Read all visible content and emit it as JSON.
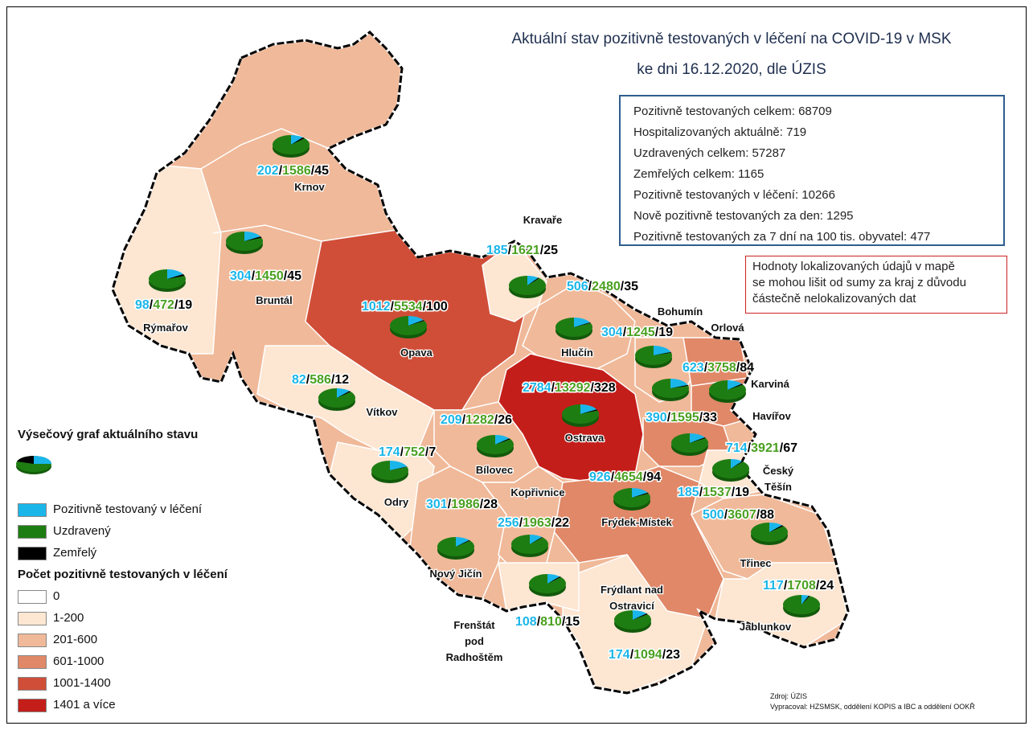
{
  "title_line1": "Aktuální stav pozitivně testovaných v léčení na COVID-19 v MSK",
  "title_line2": "ke dni 16.12.2020, dle ÚZIS",
  "stats": [
    "Pozitivně testovaných celkem: 68709",
    "Hospitalizovaných aktuálně: 719",
    "Uzdravených celkem: 57287",
    "Zemřelých celkem: 1165",
    "Pozitivně testovaných v léčení: 10266",
    "Nově pozitivně testovaných za den: 1295",
    "Pozitivně testovaných za 7 dní na 100 tis. obyvatel: 477"
  ],
  "note": [
    "Hodnoty lokalizovaných údajů v mapě",
    "se mohou lišit od sumy za kraj z důvodu",
    "částečně nelokalizovaných dat"
  ],
  "legend": {
    "pie_title": "Výsečový graf aktuálního stavu",
    "items": [
      {
        "label": "Pozitivně testovaný v léčení",
        "color": "#1ab6ea"
      },
      {
        "label": "Uzdravený",
        "color": "#1e7d12"
      },
      {
        "label": "Zemřelý",
        "color": "#000000"
      }
    ],
    "count_title": "Počet pozitivně testovaných v léčení",
    "classes": [
      {
        "label": "0",
        "color": "#ffffff"
      },
      {
        "label": "1-200",
        "color": "#fde6d2"
      },
      {
        "label": "201-600",
        "color": "#f0b999"
      },
      {
        "label": "601-1000",
        "color": "#e08868"
      },
      {
        "label": "1001-1400",
        "color": "#d04e38"
      },
      {
        "label": "1401 a více",
        "color": "#c41e1a"
      }
    ]
  },
  "source": [
    "Zdroj: ÚZIS",
    "Vypracoval: HZSMSK, oddělení KOPIS a IBC a oddělení OOKŘ"
  ],
  "regions": [
    {
      "name": "Krnov",
      "active": 202,
      "recovered": 1586,
      "deaths": 45
    },
    {
      "name": "Rýmařov",
      "active": 98,
      "recovered": 472,
      "deaths": 19
    },
    {
      "name": "Bruntál",
      "active": 304,
      "recovered": 1450,
      "deaths": 45
    },
    {
      "name": "Kravaře",
      "active": 185,
      "recovered": 1621,
      "deaths": 25
    },
    {
      "name": "Opava",
      "active": 1012,
      "recovered": 5534,
      "deaths": 100
    },
    {
      "name": "Hlučín",
      "active": 506,
      "recovered": 2480,
      "deaths": 35
    },
    {
      "name": "Bohumín",
      "active": 304,
      "recovered": 1245,
      "deaths": 19
    },
    {
      "name": "Orlová",
      "active": 623,
      "recovered": 3758,
      "deaths": 84
    },
    {
      "name": "Karviná",
      "active": 390,
      "recovered": 1595,
      "deaths": 33
    },
    {
      "name": "Havířov",
      "active": 714,
      "recovered": 3921,
      "deaths": 67
    },
    {
      "name": "Ostrava",
      "active": 2784,
      "recovered": 13292,
      "deaths": 328
    },
    {
      "name": "Vítkov",
      "active": 82,
      "recovered": 586,
      "deaths": 12
    },
    {
      "name": "Bílovec",
      "active": 209,
      "recovered": 1282,
      "deaths": 26
    },
    {
      "name": "Odry",
      "active": 174,
      "recovered": 752,
      "deaths": 7
    },
    {
      "name": "Kopřivnice",
      "active": 256,
      "recovered": 1963,
      "deaths": 22
    },
    {
      "name": "Nový Jičín",
      "active": 301,
      "recovered": 1986,
      "deaths": 28
    },
    {
      "name": "Frýdek-Místek",
      "active": 926,
      "recovered": 4654,
      "deaths": 94
    },
    {
      "name": "Český Těšín",
      "active": 185,
      "recovered": 1537,
      "deaths": 19
    },
    {
      "name": "Třinec",
      "active": 500,
      "recovered": 3607,
      "deaths": 88
    },
    {
      "name": "Jablunkov",
      "active": 117,
      "recovered": 1708,
      "deaths": 24
    },
    {
      "name": "Frýdlant nad Ostravicí",
      "active": 174,
      "recovered": 1094,
      "deaths": 23
    },
    {
      "name": "Frenštát pod Radhoštěm",
      "active": 108,
      "recovered": 810,
      "deaths": 15
    }
  ]
}
